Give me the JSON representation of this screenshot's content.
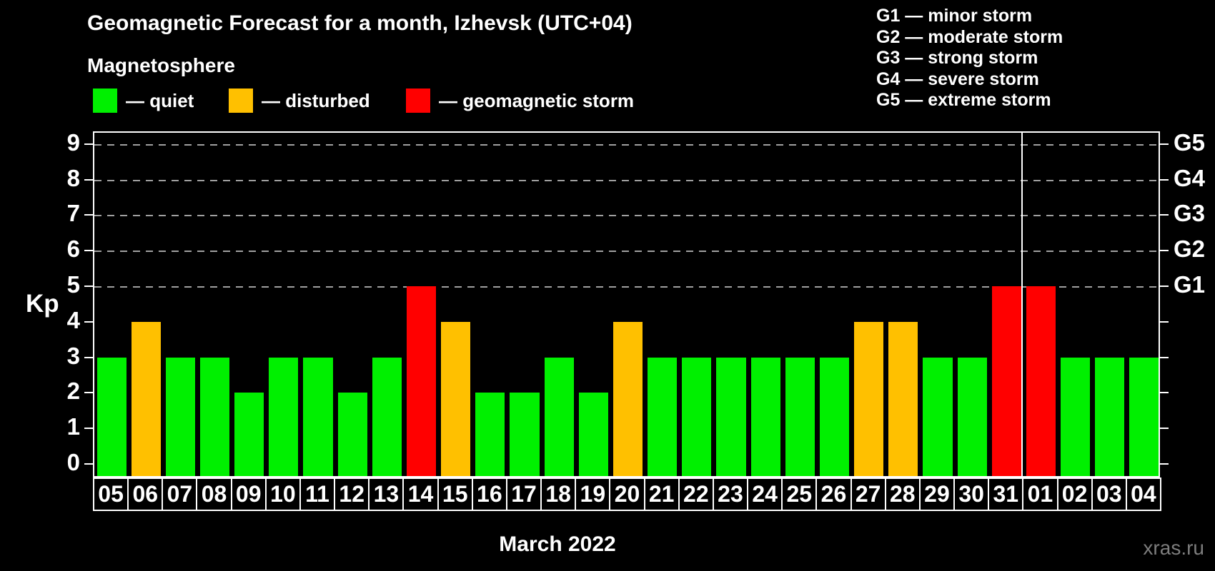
{
  "title": "Geomagnetic Forecast for a month, Izhevsk (UTC+04)",
  "subtitle": "Magnetosphere",
  "legend": {
    "items": [
      {
        "id": "quiet",
        "label": "— quiet"
      },
      {
        "id": "disturbed",
        "label": "— disturbed"
      },
      {
        "id": "storm",
        "label": "— geomagnetic storm"
      }
    ]
  },
  "storm_scale_legend": [
    "G1 — minor storm",
    "G2 — moderate storm",
    "G3 — strong storm",
    "G4 — severe storm",
    "G5 — extreme storm"
  ],
  "colors": {
    "quiet": "#00F000",
    "disturbed": "#FFC000",
    "storm": "#FF0000",
    "grid": "#A0A0A0",
    "axis": "#FFFFFF",
    "watermark": "#7D7D7D"
  },
  "chart_data": {
    "type": "bar",
    "title": "Geomagnetic Forecast for a month, Izhevsk (UTC+04)",
    "ylabel": "Kp",
    "xlabel": "March 2022",
    "ylim": [
      0,
      9.4
    ],
    "yticks": [
      0,
      1,
      2,
      3,
      4,
      5,
      6,
      7,
      8,
      9
    ],
    "gridlines_at": [
      5,
      6,
      7,
      8,
      9
    ],
    "grid": "dashed horizontal, levels 5-9 only",
    "right_axis_labels": [
      {
        "value": 5,
        "label": "G1"
      },
      {
        "value": 6,
        "label": "G2"
      },
      {
        "value": 7,
        "label": "G3"
      },
      {
        "value": 8,
        "label": "G4"
      },
      {
        "value": 9,
        "label": "G5"
      }
    ],
    "categories": [
      "05",
      "06",
      "07",
      "08",
      "09",
      "10",
      "11",
      "12",
      "13",
      "14",
      "15",
      "16",
      "17",
      "18",
      "19",
      "20",
      "21",
      "22",
      "23",
      "24",
      "25",
      "26",
      "27",
      "28",
      "29",
      "30",
      "31",
      "01",
      "02",
      "03",
      "04"
    ],
    "values": [
      3,
      4,
      3,
      3,
      2,
      3,
      3,
      2,
      3,
      5,
      4,
      2,
      2,
      3,
      2,
      4,
      3,
      3,
      3,
      3,
      3,
      3,
      4,
      4,
      3,
      3,
      5,
      5,
      3,
      3,
      3
    ],
    "statuses": [
      "quiet",
      "disturbed",
      "quiet",
      "quiet",
      "quiet",
      "quiet",
      "quiet",
      "quiet",
      "quiet",
      "storm",
      "disturbed",
      "quiet",
      "quiet",
      "quiet",
      "quiet",
      "disturbed",
      "quiet",
      "quiet",
      "quiet",
      "quiet",
      "quiet",
      "quiet",
      "disturbed",
      "disturbed",
      "quiet",
      "quiet",
      "storm",
      "storm",
      "quiet",
      "quiet",
      "quiet"
    ],
    "month_boundary_after_index": 26,
    "legend_position": "top"
  },
  "footer": {
    "xaxis_label": "March 2022",
    "watermark": "xras.ru"
  }
}
